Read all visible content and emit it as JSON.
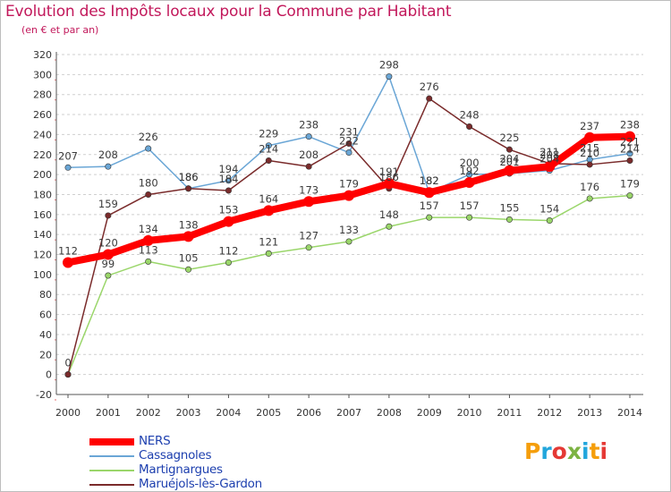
{
  "title": "Evolution des Impôts locaux pour la Commune par Habitant",
  "subtitle": "(en € et par an)",
  "brand": {
    "text": "Proxiti",
    "colors": [
      "#f59e0b",
      "#22a6dc",
      "#e53935",
      "#7cb342",
      "#22a6dc",
      "#f59e0b",
      "#e53935"
    ]
  },
  "chart_data": {
    "type": "line",
    "title": "Evolution des Impôts locaux pour la Commune par Habitant",
    "subtitle": "(en € et par an)",
    "xlabel": "",
    "ylabel": "",
    "x": [
      "2000",
      "2001",
      "2002",
      "2003",
      "2004",
      "2005",
      "2006",
      "2007",
      "2008",
      "2009",
      "2010",
      "2011",
      "2012",
      "2013",
      "2014"
    ],
    "ylim": [
      -20,
      320
    ],
    "yticks": [
      "-20",
      "0",
      "20",
      "40",
      "60",
      "80",
      "100",
      "120",
      "140",
      "160",
      "180",
      "200",
      "220",
      "240",
      "260",
      "280",
      "300",
      "320"
    ],
    "grid": "horizontal dashed",
    "legend_position": "bottom-left",
    "series": [
      {
        "name": "NERS",
        "color": "#ff0000",
        "values": [
          112,
          120,
          134,
          138,
          153,
          164,
          173,
          179,
          191,
          182,
          192,
          204,
          208,
          237,
          238
        ],
        "labels": [
          "112",
          "120",
          "134",
          "138",
          "153",
          "164",
          "173",
          "179",
          "191",
          "182",
          "192",
          "204",
          "208",
          "237",
          "238"
        ]
      },
      {
        "name": "Cassagnoles",
        "color": "#6aa6d6",
        "values": [
          207,
          208,
          226,
          186,
          194,
          229,
          238,
          222,
          298,
          182,
          200,
          201,
          204,
          215,
          221
        ],
        "labels": [
          "207",
          "208",
          "226",
          "186",
          "194",
          "229",
          "238",
          "222",
          "298",
          "182",
          "200",
          "201",
          "204",
          "215",
          "221"
        ]
      },
      {
        "name": "Martignargues",
        "color": "#9ad66a",
        "values": [
          0,
          99,
          113,
          105,
          112,
          121,
          127,
          133,
          148,
          157,
          157,
          155,
          154,
          176,
          179
        ],
        "labels": [
          "",
          "99",
          "113",
          "105",
          "112",
          "121",
          "127",
          "133",
          "148",
          "157",
          "157",
          "155",
          "154",
          "176",
          "179"
        ]
      },
      {
        "name": "Maruéjols-lès-Gardon",
        "color": "#7a2b2b",
        "values": [
          0,
          159,
          180,
          186,
          184,
          214,
          208,
          231,
          186,
          276,
          248,
          225,
          211,
          210,
          214
        ],
        "labels": [
          "0",
          "159",
          "180",
          "186",
          "184",
          "214",
          "208",
          "231",
          "186",
          "276",
          "248",
          "225",
          "211",
          "210",
          "214"
        ]
      }
    ]
  }
}
